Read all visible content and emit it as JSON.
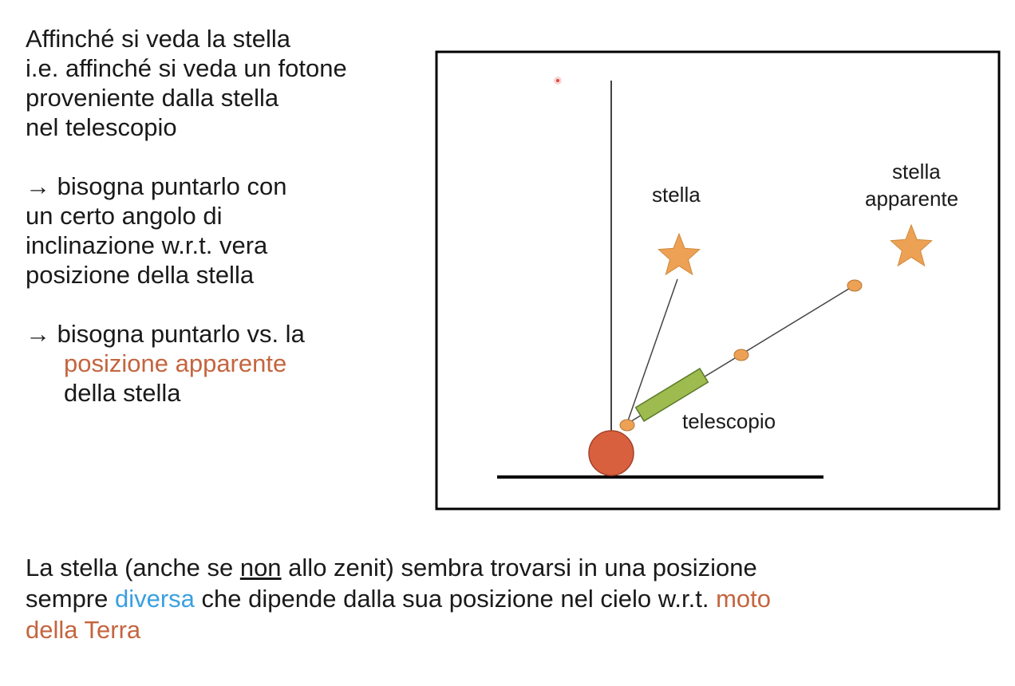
{
  "left": {
    "p1": [
      "Affinché si veda la stella",
      "i.e. affinché si veda un fotone",
      "proveniente dalla stella",
      "nel telescopio"
    ],
    "p2": [
      "→ bisogna puntarlo con",
      "un certo angolo di",
      "inclinazione w.r.t. vera",
      "posizione della stella"
    ],
    "p3": {
      "line1": "→ bisogna puntarlo vs. la",
      "line2_highlight": "posizione apparente",
      "line3": "della stella"
    }
  },
  "diagram": {
    "star_label": "stella",
    "apparent_star_label_1": "stella",
    "apparent_star_label_2": "apparente",
    "telescope_label": "telescopio"
  },
  "bottom": {
    "t1": "La stella (anche se ",
    "t_underline": "non",
    "t2": " allo zenit) sembra trovarsi in una posizione",
    "t3": "sempre ",
    "t_blue": "diversa",
    "t4": " che dipende dalla sua posizione nel cielo w.r.t. ",
    "t_orange_1": "moto",
    "t_orange_2": "della Terra"
  },
  "colors": {
    "star_fill": "#eda155",
    "earth_fill": "#d9603f",
    "telescope_fill": "#9dbb4f",
    "highlight_orange": "#c4653f",
    "highlight_blue": "#3aa0e0"
  }
}
